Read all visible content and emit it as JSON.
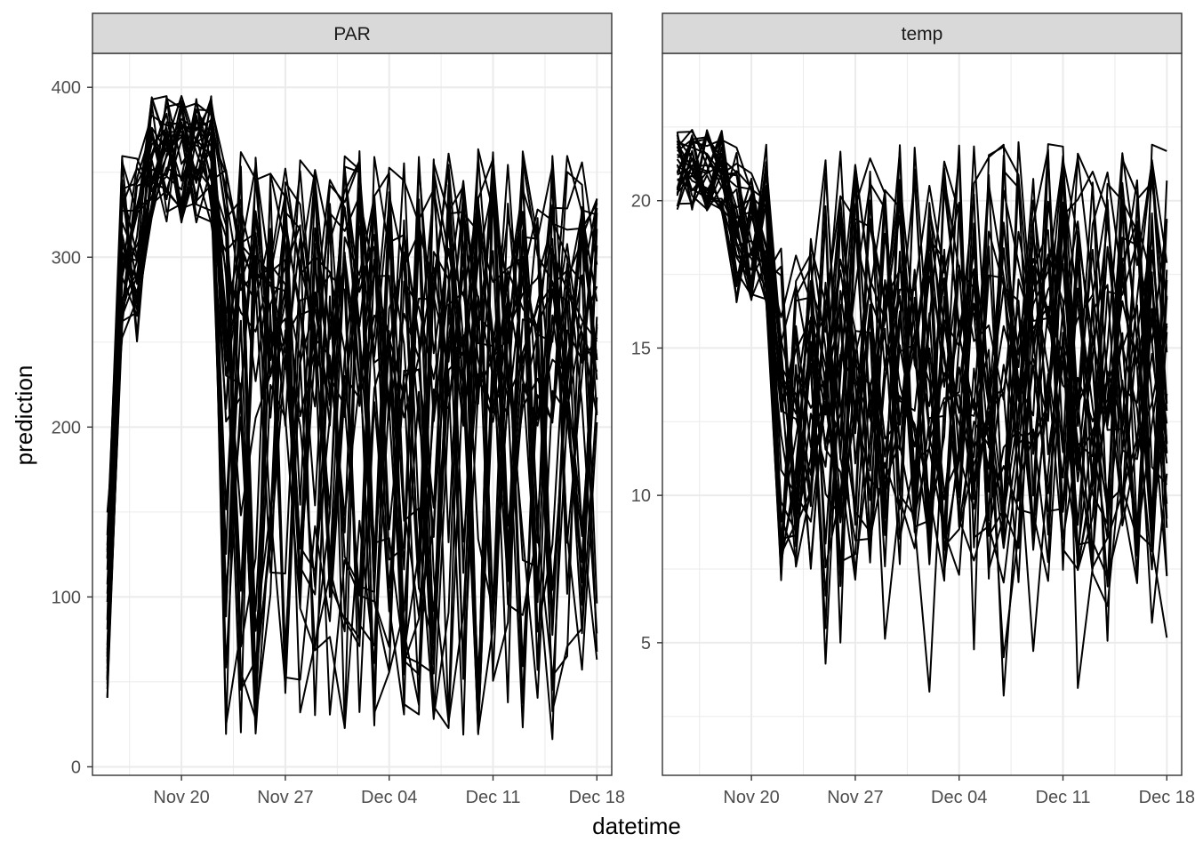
{
  "x_label": "datetime",
  "y_label": "prediction",
  "x_ticks": [
    "Nov 20",
    "Nov 27",
    "Dec 04",
    "Dec 11",
    "Dec 18"
  ],
  "chart_data": {
    "type": "line",
    "facet": true,
    "xlabel": "datetime",
    "ylabel": "prediction",
    "grid": true,
    "n_series_per_panel": 30,
    "panels": [
      {
        "title": "PAR",
        "xlim": [
          "2023-11-14",
          "2023-12-19"
        ],
        "ylim": [
          -5,
          420
        ],
        "yticks": [
          0,
          100,
          200,
          300,
          400
        ],
        "x_range": [
          "2023-11-15",
          "2023-12-18"
        ],
        "y_range_approx": [
          11,
          398
        ],
        "series": [
          {
            "x": [
              "2023-11-15",
              "2023-11-16",
              "2023-11-17",
              "2023-11-18",
              "2023-11-19",
              "2023-11-20",
              "2023-11-21",
              "2023-11-22",
              "2023-11-23",
              "2023-11-24"
            ],
            "values": [
              45,
              35,
              300,
              350,
              390,
              380,
              330,
              390,
              395,
              360
            ]
          }
        ]
      },
      {
        "title": "temp",
        "xlim": [
          "2023-11-14",
          "2023-12-19"
        ],
        "ylim": [
          0.5,
          25.0
        ],
        "yticks": [
          5,
          10,
          15,
          20
        ],
        "x_range": [
          "2023-11-15",
          "2023-12-18"
        ],
        "y_range_approx": [
          1.6,
          23.9
        ],
        "series": [
          {
            "x": [
              "2023-11-15",
              "2023-11-16",
              "2023-11-17",
              "2023-11-18",
              "2023-11-19",
              "2023-11-20",
              "2023-11-21",
              "2023-11-22",
              "2023-11-23",
              "2023-11-24"
            ],
            "values": [
              20.5,
              21.0,
              21.8,
              21.2,
              19.5,
              18.5,
              17.5,
              15.0,
              13.0,
              14.5
            ]
          }
        ]
      }
    ]
  },
  "colors": {
    "line": "#000000",
    "strip_bg": "#d9d9d9",
    "grid": "#ebebeb",
    "frame": "#333333",
    "tick_text": "#4d4d4d"
  }
}
